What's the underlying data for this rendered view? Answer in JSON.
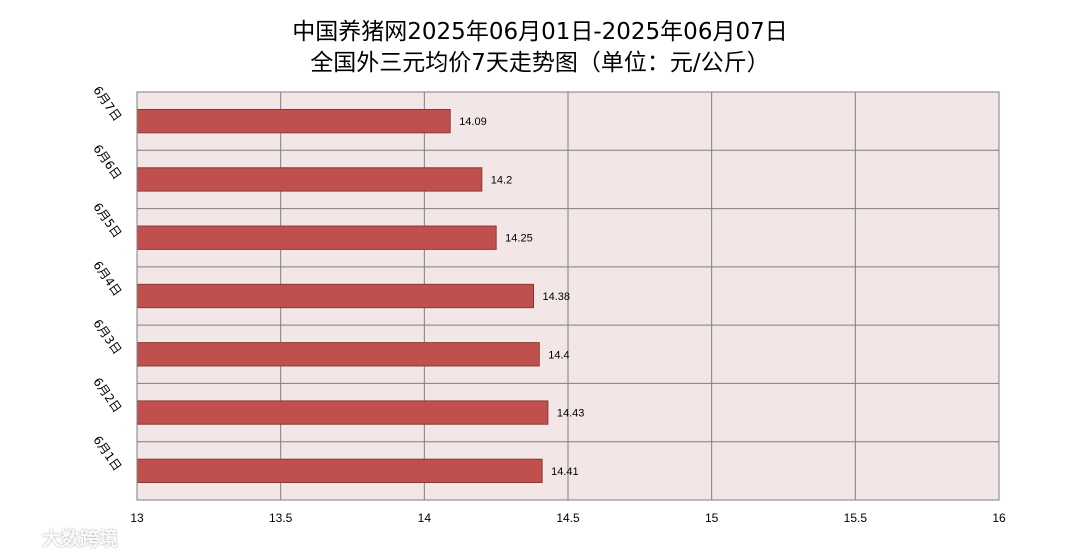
{
  "title_line1": "中国养猪网2025年06月01日-2025年06月07日",
  "title_line2": "全国外三元均价7天走势图（单位：元/公斤）",
  "watermark": "大数跨境",
  "chart_data": {
    "type": "bar",
    "orientation": "horizontal",
    "categories": [
      "6月7日",
      "6月6日",
      "6月5日",
      "6月4日",
      "6月3日",
      "6月2日",
      "6月1日"
    ],
    "values": [
      14.09,
      14.2,
      14.25,
      14.38,
      14.4,
      14.43,
      14.41
    ],
    "data_labels": [
      "14.09",
      "14.2",
      "14.25",
      "14.38",
      "14.4",
      "14.43",
      "14.41"
    ],
    "xlim": [
      13,
      16
    ],
    "x_ticks": [
      "13",
      "13.5",
      "14",
      "14.5",
      "15",
      "15.5",
      "16"
    ],
    "grid": true,
    "legend": "none",
    "colors": {
      "bar_fill": "#c0504d",
      "bar_stroke": "#8c3836",
      "plot_background": "#f2e6e6",
      "grid": "#7f7f7f"
    }
  }
}
